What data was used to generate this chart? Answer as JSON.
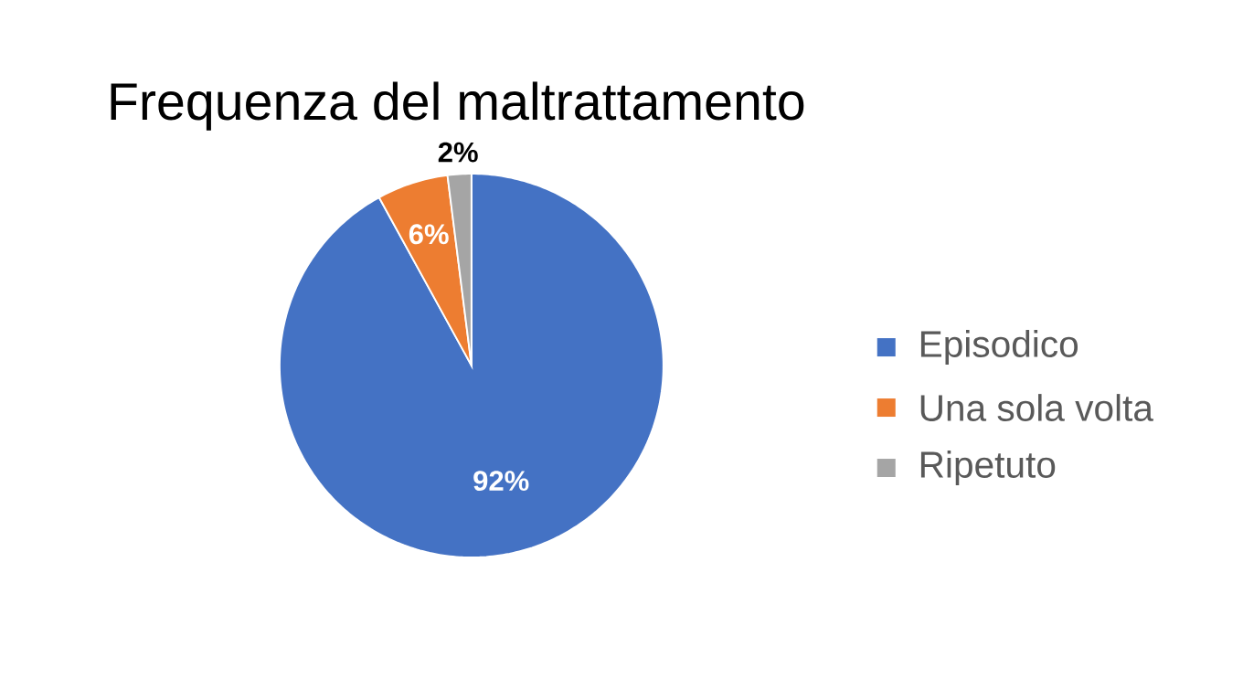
{
  "chart_data": {
    "type": "pie",
    "title": "Frequenza del maltrattamento",
    "categories": [
      "Episodico",
      "Una sola volta",
      "Ripetuto"
    ],
    "values": [
      92,
      6,
      2
    ],
    "colors": [
      "#4472c4",
      "#ed7d31",
      "#a5a5a5"
    ],
    "value_labels": [
      "92%",
      "6%",
      "2%"
    ],
    "legend": "right"
  }
}
